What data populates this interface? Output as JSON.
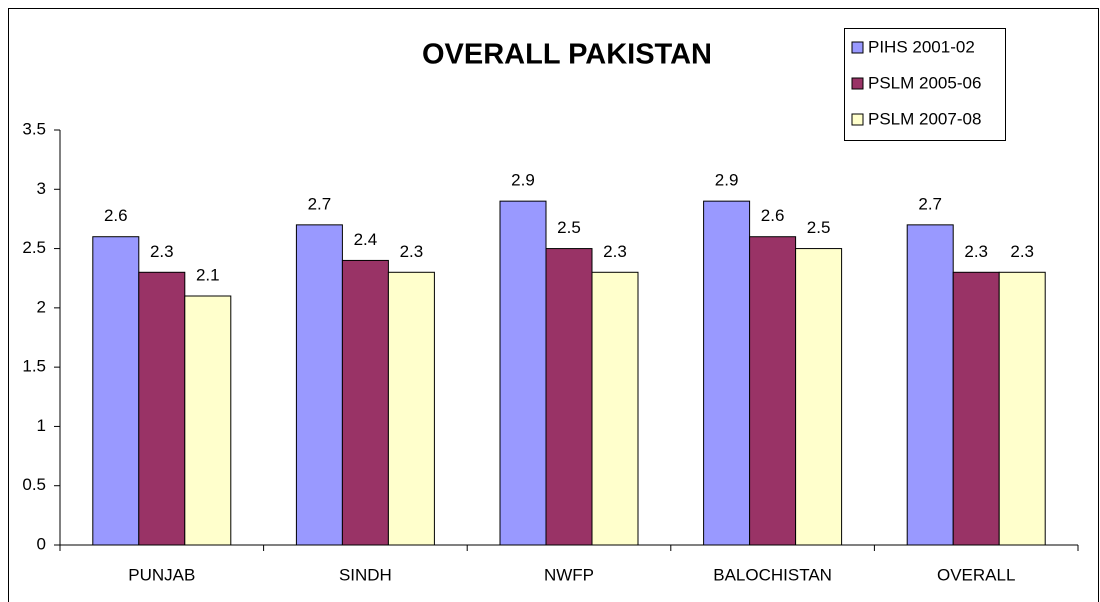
{
  "chart_data": {
    "type": "bar",
    "title": "OVERALL PAKISTAN",
    "categories": [
      "PUNJAB",
      "SINDH",
      "NWFP",
      "BALOCHISTAN",
      "OVERALL"
    ],
    "series": [
      {
        "name": "PIHS 2001-02",
        "color": "#9999ff",
        "values": [
          2.6,
          2.7,
          2.9,
          2.9,
          2.7
        ]
      },
      {
        "name": "PSLM 2005-06",
        "color": "#993366",
        "values": [
          2.3,
          2.4,
          2.5,
          2.6,
          2.3
        ]
      },
      {
        "name": "PSLM 2007-08",
        "color": "#ffffcc",
        "values": [
          2.1,
          2.3,
          2.3,
          2.5,
          2.3
        ]
      }
    ],
    "ylim": [
      0,
      3.5
    ],
    "yticks": [
      0,
      0.5,
      1,
      1.5,
      2,
      2.5,
      3,
      3.5
    ],
    "grid": false,
    "legend": "top-right"
  }
}
